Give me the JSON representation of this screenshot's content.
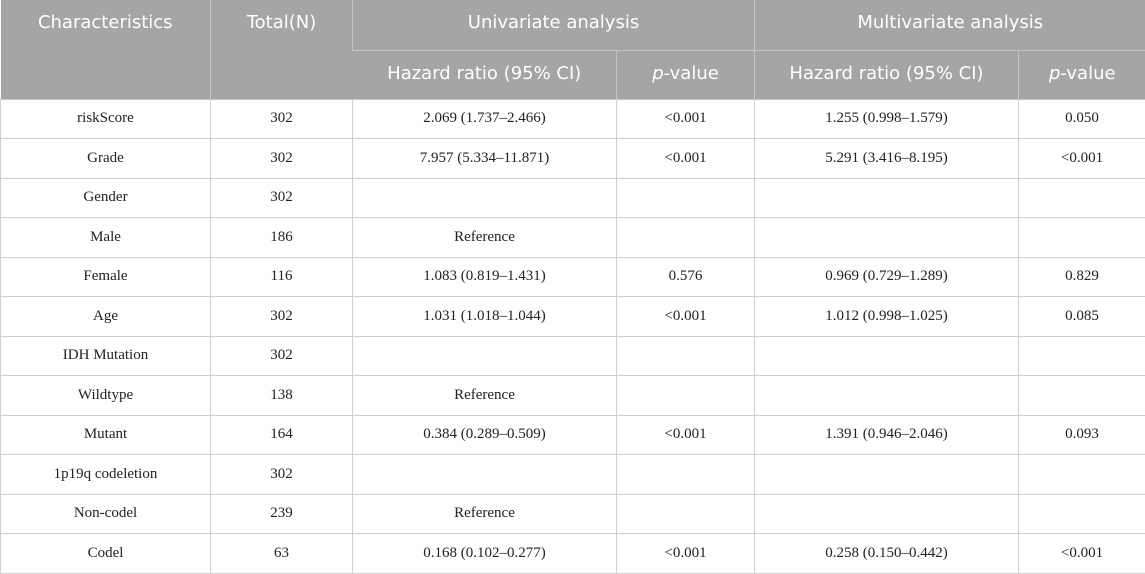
{
  "table": {
    "header": {
      "top": [
        "Characteristics",
        "Total(N)",
        "Univariate analysis",
        "Multivariate analysis"
      ],
      "sub": [
        "Hazard ratio (95% CI)",
        "p-value",
        "Hazard ratio (95% CI)",
        "p-value"
      ]
    },
    "rows": [
      [
        "riskScore",
        "302",
        "2.069 (1.737–2.466)",
        "<0.001",
        "1.255 (0.998–1.579)",
        "0.050"
      ],
      [
        "Grade",
        "302",
        "7.957 (5.334–11.871)",
        "<0.001",
        "5.291 (3.416–8.195)",
        "<0.001"
      ],
      [
        "Gender",
        "302",
        null,
        null,
        null,
        null
      ],
      [
        "Male",
        "186",
        "Reference",
        null,
        null,
        null
      ],
      [
        "Female",
        "116",
        "1.083 (0.819–1.431)",
        "0.576",
        "0.969 (0.729–1.289)",
        "0.829"
      ],
      [
        "Age",
        "302",
        "1.031 (1.018–1.044)",
        "<0.001",
        "1.012 (0.998–1.025)",
        "0.085"
      ],
      [
        "IDH Mutation",
        "302",
        null,
        null,
        null,
        null
      ],
      [
        "Wildtype",
        "138",
        "Reference",
        null,
        null,
        null
      ],
      [
        "Mutant",
        "164",
        "0.384 (0.289–0.509)",
        "<0.001",
        "1.391 (0.946–2.046)",
        "0.093"
      ],
      [
        "1p19q codeletion",
        "302",
        null,
        null,
        null,
        null
      ],
      [
        "Non-codel",
        "239",
        "Reference",
        null,
        null,
        null
      ],
      [
        "Codel",
        "63",
        "0.168 (0.102–0.277)",
        "<0.001",
        "0.258 (0.150–0.442)",
        "<0.001"
      ]
    ]
  }
}
